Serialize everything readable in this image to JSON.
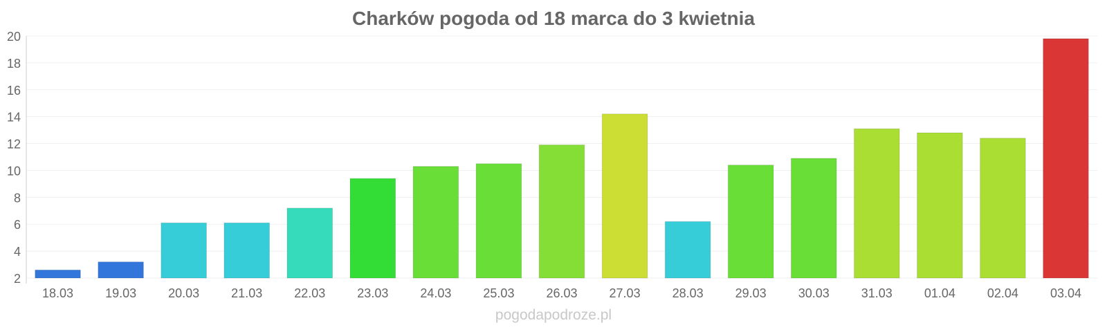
{
  "watermark": "pogodapodroze.pl",
  "chart_data": {
    "type": "bar",
    "title": "Charków pogoda od 18 marca do 3 kwietnia",
    "xlabel": "",
    "ylabel": "",
    "categories": [
      "18.03",
      "19.03",
      "20.03",
      "21.03",
      "22.03",
      "23.03",
      "24.03",
      "25.03",
      "26.03",
      "27.03",
      "28.03",
      "29.03",
      "30.03",
      "31.03",
      "01.04",
      "02.04",
      "03.04"
    ],
    "values": [
      2.6,
      3.2,
      6.1,
      6.1,
      7.2,
      9.4,
      10.3,
      10.5,
      11.9,
      14.2,
      6.2,
      10.4,
      10.9,
      13.1,
      12.8,
      12.4,
      19.8
    ],
    "colors": [
      "#3276db",
      "#3276db",
      "#36cdd9",
      "#36cdd9",
      "#36dbbb",
      "#33dd36",
      "#68de36",
      "#68de36",
      "#85de36",
      "#ccdd33",
      "#36cdd9",
      "#68de36",
      "#68de36",
      "#aade33",
      "#aade33",
      "#aade33",
      "#db3636"
    ],
    "yticks": [
      2,
      4,
      6,
      8,
      10,
      12,
      14,
      16,
      18,
      20
    ],
    "ylim": [
      2,
      20
    ],
    "grid": true,
    "legend": "none"
  }
}
